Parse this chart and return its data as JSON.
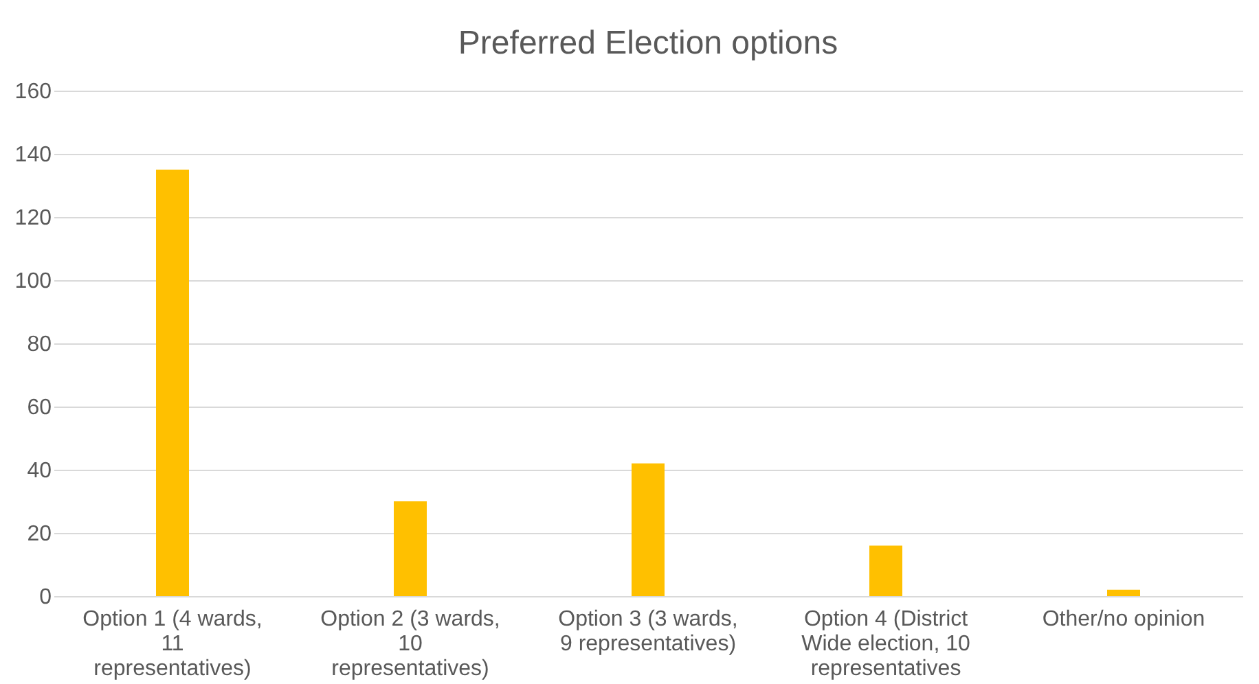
{
  "chart_data": {
    "type": "bar",
    "title": "Preferred Election options",
    "categories": [
      "Option 1 (4 wards, 11 representatives)",
      "Option 2 (3 wards, 10 representatives)",
      "Option 3 (3 wards, 9 representatives)",
      "Option 4 (District Wide election, 10 representatives",
      "Other/no opinion"
    ],
    "values": [
      135,
      30,
      42,
      16,
      2
    ],
    "color": "#ffc000",
    "ylim": [
      0,
      160
    ],
    "yticks": [
      0,
      20,
      40,
      60,
      80,
      100,
      120,
      140,
      160
    ],
    "grid": "y"
  }
}
